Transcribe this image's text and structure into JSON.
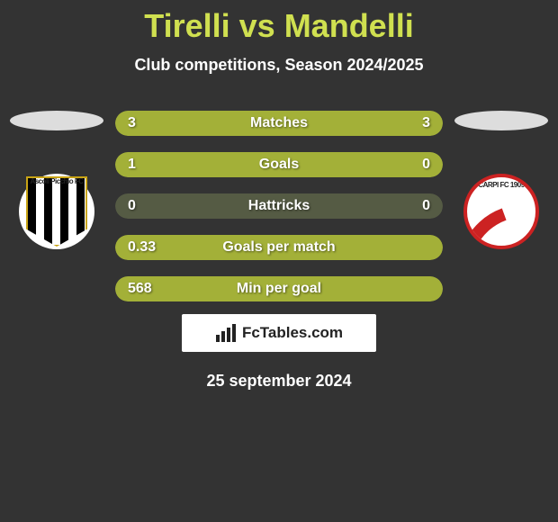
{
  "title": "Tirelli vs Mandelli",
  "subtitle": "Club competitions, Season 2024/2025",
  "date": "25 september 2024",
  "watermark": "FcTables.com",
  "colors": {
    "accent": "#d0e050",
    "bg": "#333333",
    "pill_empty": "#555b44",
    "pill_fill": "#a3b038",
    "text": "#ffffff"
  },
  "left_club_label": "Ascoli Picchio FC",
  "right_club_label": "CARPI FC 1909",
  "stats": [
    {
      "label": "Matches",
      "left_val": "3",
      "right_val": "3",
      "left_pct": 50,
      "right_pct": 50
    },
    {
      "label": "Goals",
      "left_val": "1",
      "right_val": "0",
      "left_pct": 100,
      "right_pct": 0
    },
    {
      "label": "Hattricks",
      "left_val": "0",
      "right_val": "0",
      "left_pct": 0,
      "right_pct": 0
    },
    {
      "label": "Goals per match",
      "left_val": "0.33",
      "right_val": "",
      "left_pct": 100,
      "right_pct": 0
    },
    {
      "label": "Min per goal",
      "left_val": "568",
      "right_val": "",
      "left_pct": 100,
      "right_pct": 0
    }
  ]
}
